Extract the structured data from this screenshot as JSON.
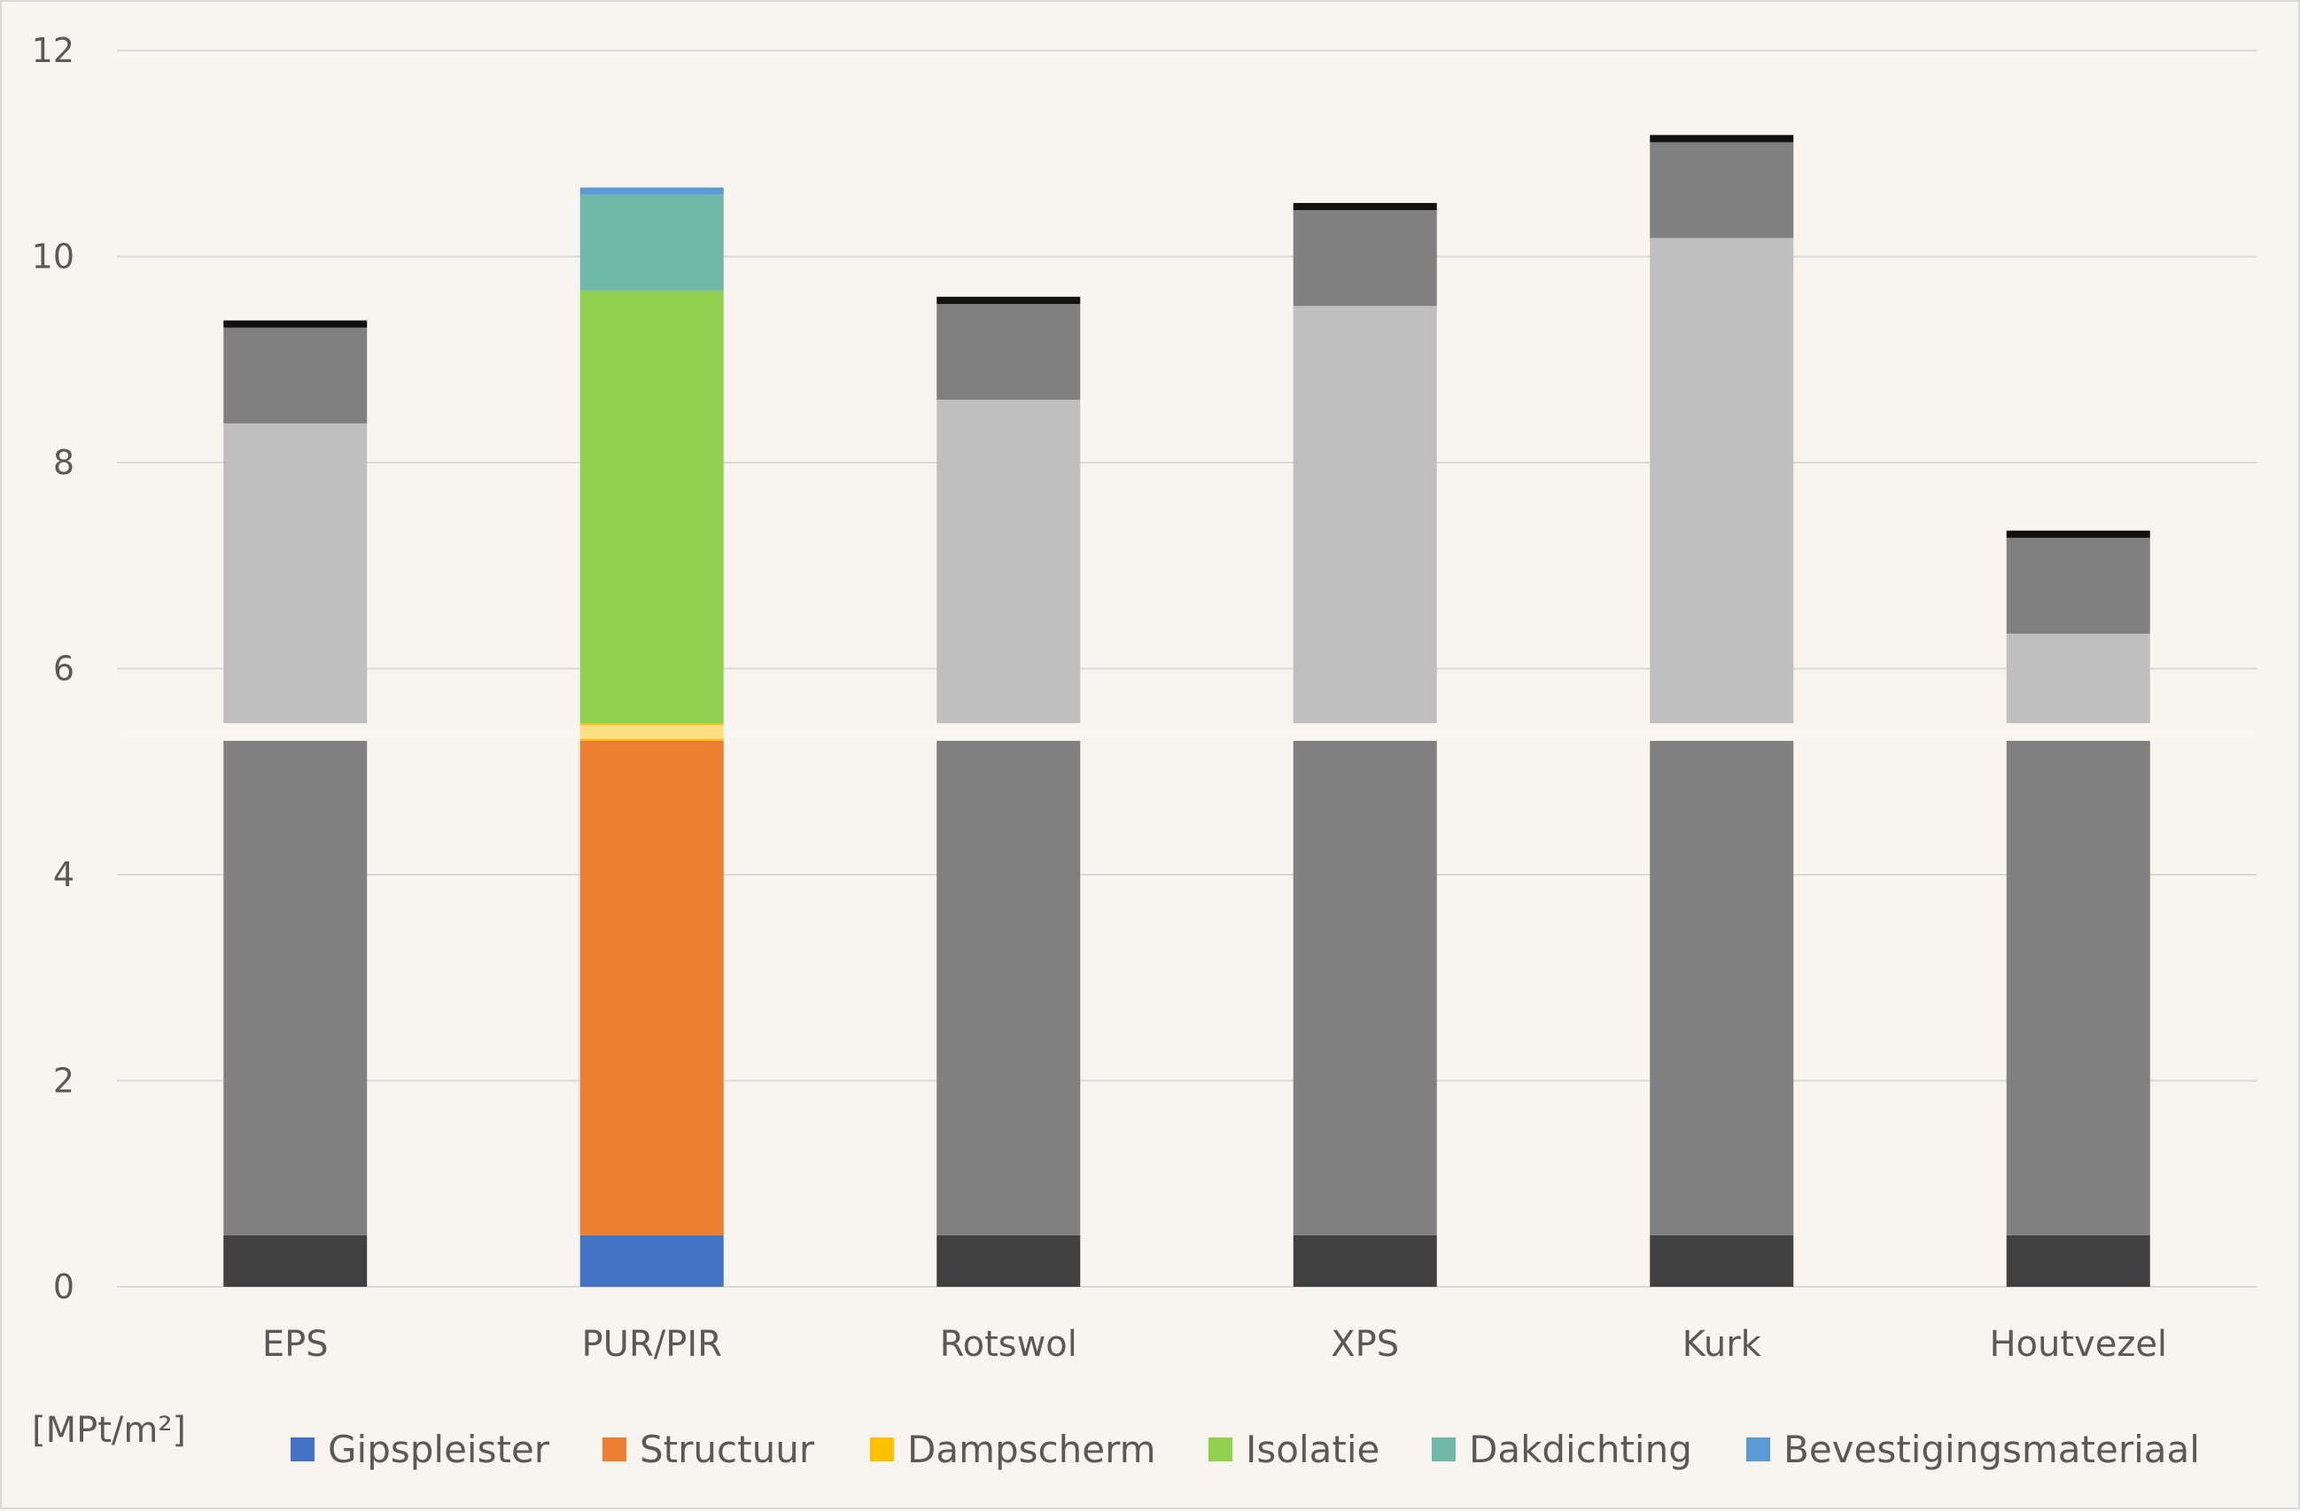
{
  "chart_data": {
    "type": "bar",
    "stacked": true,
    "categories": [
      "EPS",
      "PUR/PIR",
      "Rotswol",
      "XPS",
      "Kurk",
      "Houtvezel"
    ],
    "ylim": [
      0,
      12
    ],
    "yticks": [
      0,
      2,
      4,
      6,
      8,
      10,
      12
    ],
    "ylabel": "[MPt/m²]",
    "xlabel": "",
    "title": "",
    "grid": true,
    "legend_position": "bottom",
    "axis_break_between": [
      5.3,
      5.47
    ],
    "series": [
      {
        "name": "Gipspleister",
        "color": "#4472c4",
        "values": [
          0.5,
          0.5,
          0.5,
          0.5,
          0.5,
          0.5
        ]
      },
      {
        "name": "Structuur",
        "color": "#ed7d31",
        "values": [
          4.8,
          4.8,
          4.8,
          4.8,
          4.8,
          4.8
        ]
      },
      {
        "name": "Dampscherm",
        "color": "#ffc000",
        "values": [
          0.17,
          0.17,
          0.17,
          0.17,
          0.17,
          0.17
        ]
      },
      {
        "name": "Isolatie",
        "color": "#92d050",
        "values": [
          2.91,
          4.2,
          3.14,
          4.05,
          4.71,
          0.87
        ]
      },
      {
        "name": "Dakdichting",
        "color": "#70b8a8",
        "values": [
          0.93,
          0.93,
          0.93,
          0.93,
          0.93,
          0.93
        ]
      },
      {
        "name": "Bevestigingsmateriaal",
        "color": "#5b9bd5",
        "values": [
          0.07,
          0.07,
          0.07,
          0.07,
          0.07,
          0.07
        ]
      }
    ],
    "grey_palette": [
      "#404040",
      "#808080",
      "#f8f5f1",
      "#bfbfbf",
      "#808080",
      "#111111"
    ],
    "highlighted_category": "PUR/PIR"
  }
}
